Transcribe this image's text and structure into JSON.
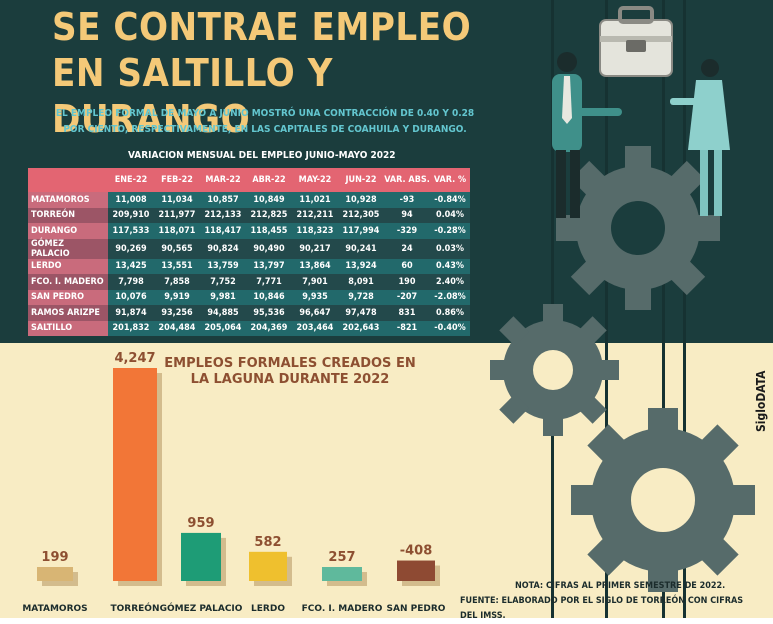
{
  "title": "SE CONTRAE EMPLEO EN SALTILLO Y DURANGO",
  "subtitle": "EL EMPLEO FORMAL DE MAYO A JUNIO MOSTRÓ UNA CONTRACCIÓN DE 0.40 Y 0.28 POR CIENTO, RESPECTIVAMENTE, EN LAS CAPITALES DE COAHUILA Y DURANGO.",
  "table": {
    "title": "VARIACION MENSUAL DEL EMPLEO JUNIO-MAYO 2022",
    "headers": [
      "ENE-22",
      "FEB-22",
      "MAR-22",
      "ABR-22",
      "MAY-22",
      "JUN-22",
      "VAR. ABS.",
      "VAR. %"
    ],
    "rows": [
      [
        "MATAMOROS",
        "11,008",
        "11,034",
        "10,857",
        "10,849",
        "11,021",
        "10,928",
        "-93",
        "-0.84%"
      ],
      [
        "TORREÓN",
        "209,910",
        "211,977",
        "212,133",
        "212,825",
        "212,211",
        "212,305",
        "94",
        "0.04%"
      ],
      [
        "DURANGO",
        "117,533",
        "118,071",
        "118,417",
        "118,455",
        "118,323",
        "117,994",
        "-329",
        "-0.28%"
      ],
      [
        "GÓMEZ PALACIO",
        "90,269",
        "90,565",
        "90,824",
        "90,490",
        "90,217",
        "90,241",
        "24",
        "0.03%"
      ],
      [
        "LERDO",
        "13,425",
        "13,551",
        "13,759",
        "13,797",
        "13,864",
        "13,924",
        "60",
        "0.43%"
      ],
      [
        "FCO. I. MADERO",
        "7,798",
        "7,858",
        "7,752",
        "7,771",
        "7,901",
        "8,091",
        "190",
        "2.40%"
      ],
      [
        "SAN PEDRO",
        "10,076",
        "9,919",
        "9,981",
        "10,846",
        "9,935",
        "9,728",
        "-207",
        "-2.08%"
      ],
      [
        "RAMOS ARIZPE",
        "91,874",
        "93,256",
        "94,885",
        "95,536",
        "96,647",
        "97,478",
        "831",
        "0.86%"
      ],
      [
        "SALTILLO",
        "201,832",
        "204,484",
        "205,064",
        "204,369",
        "203,464",
        "202,643",
        "-821",
        "-0.40%"
      ]
    ]
  },
  "brand": "SigloDATA",
  "notes": {
    "note": "NOTA: CIFRAS AL PRIMER SEMESTRE DE 2022.",
    "source": "FUENTE: ELABORADO POR EL SIGLO DE TORREÓN CON CIFRAS DEL IMSS."
  },
  "colors": {
    "dark_teal": "#1b3d3d",
    "cream": "#f8ecc4",
    "title_yellow": "#f4c978",
    "header_pink": "#e36572",
    "gear": "#566b6a"
  },
  "icons": [
    "briefcase-icon",
    "businessman-icon",
    "businesswoman-icon",
    "gear-icon"
  ],
  "chart_data": {
    "type": "bar",
    "title": "EMPLEOS FORMALES CREADOS EN LA LAGUNA DURANTE 2022",
    "categories": [
      "MATAMOROS",
      "TORREÓN",
      "GÓMEZ PALACIO",
      "LERDO",
      "FCO. I. MADERO",
      "SAN PEDRO"
    ],
    "values": [
      199,
      4247,
      959,
      582,
      257,
      -408
    ],
    "value_labels": [
      "199",
      "4,247",
      "959",
      "582",
      "257",
      "-408"
    ],
    "colors": [
      "#d8b574",
      "#f27637",
      "#1e9c76",
      "#efc02e",
      "#5fb99c",
      "#8e4a33"
    ],
    "xlabel": "",
    "ylabel": "",
    "ylim": [
      -408,
      4247
    ],
    "grid": false,
    "legend": "none"
  }
}
